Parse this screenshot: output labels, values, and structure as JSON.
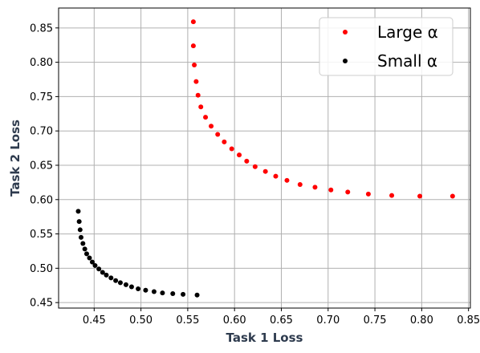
{
  "chart_data": {
    "type": "scatter",
    "xlabel": "Task 1 Loss",
    "ylabel": "Task 2 Loss",
    "xlim": [
      0.412,
      0.852
    ],
    "ylim": [
      0.442,
      0.879
    ],
    "xticks": [
      0.45,
      0.5,
      0.55,
      0.6,
      0.65,
      0.7,
      0.75,
      0.8,
      0.85
    ],
    "xtick_labels": [
      "0.45",
      "0.50",
      "0.55",
      "0.60",
      "0.65",
      "0.70",
      "0.75",
      "0.80",
      "0.85"
    ],
    "yticks": [
      0.45,
      0.5,
      0.55,
      0.6,
      0.65,
      0.7,
      0.75,
      0.8,
      0.85
    ],
    "ytick_labels": [
      "0.45",
      "0.50",
      "0.55",
      "0.60",
      "0.65",
      "0.70",
      "0.75",
      "0.80",
      "0.85"
    ],
    "grid": true,
    "legend_position": "top-right",
    "series": [
      {
        "name": "Large α",
        "legend_label": "Large α",
        "color": "#ff0000",
        "points": [
          [
            0.556,
            0.859
          ],
          [
            0.556,
            0.824
          ],
          [
            0.557,
            0.796
          ],
          [
            0.559,
            0.772
          ],
          [
            0.561,
            0.752
          ],
          [
            0.564,
            0.735
          ],
          [
            0.569,
            0.72
          ],
          [
            0.575,
            0.707
          ],
          [
            0.582,
            0.695
          ],
          [
            0.589,
            0.684
          ],
          [
            0.597,
            0.674
          ],
          [
            0.605,
            0.665
          ],
          [
            0.613,
            0.656
          ],
          [
            0.622,
            0.648
          ],
          [
            0.633,
            0.641
          ],
          [
            0.644,
            0.634
          ],
          [
            0.656,
            0.628
          ],
          [
            0.67,
            0.622
          ],
          [
            0.686,
            0.618
          ],
          [
            0.703,
            0.614
          ],
          [
            0.721,
            0.611
          ],
          [
            0.743,
            0.608
          ],
          [
            0.768,
            0.606
          ],
          [
            0.798,
            0.605
          ],
          [
            0.833,
            0.605
          ]
        ]
      },
      {
        "name": "Small α",
        "legend_label": "Small α",
        "color": "#000000",
        "points": [
          [
            0.433,
            0.583
          ],
          [
            0.434,
            0.568
          ],
          [
            0.435,
            0.556
          ],
          [
            0.436,
            0.545
          ],
          [
            0.438,
            0.536
          ],
          [
            0.44,
            0.528
          ],
          [
            0.442,
            0.521
          ],
          [
            0.445,
            0.515
          ],
          [
            0.448,
            0.509
          ],
          [
            0.451,
            0.504
          ],
          [
            0.455,
            0.499
          ],
          [
            0.459,
            0.494
          ],
          [
            0.463,
            0.49
          ],
          [
            0.468,
            0.486
          ],
          [
            0.473,
            0.482
          ],
          [
            0.478,
            0.479
          ],
          [
            0.484,
            0.476
          ],
          [
            0.49,
            0.473
          ],
          [
            0.497,
            0.47
          ],
          [
            0.505,
            0.468
          ],
          [
            0.514,
            0.466
          ],
          [
            0.523,
            0.464
          ],
          [
            0.534,
            0.463
          ],
          [
            0.545,
            0.462
          ],
          [
            0.56,
            0.461
          ]
        ]
      }
    ]
  }
}
